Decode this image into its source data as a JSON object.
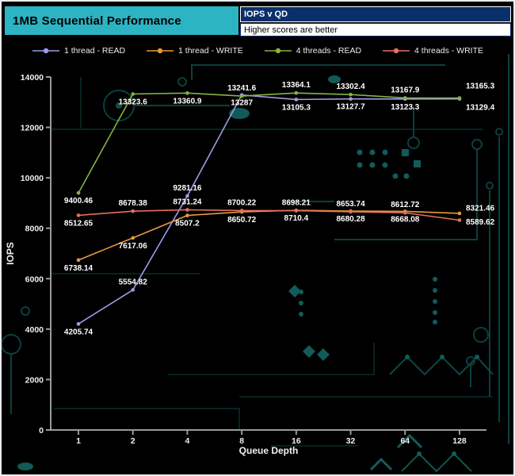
{
  "header": {
    "title": "1MB Sequential Performance",
    "title_bg_color": "#2db4c3",
    "subtitle_top": "IOPS v QD",
    "subtitle_top_bg_color": "#0b2f6b",
    "subtitle_bottom": "Higher scores are better",
    "subtitle_bottom_bg_color": "#ffffff"
  },
  "chart_data": {
    "type": "line",
    "title": "1MB Sequential Performance",
    "x_categories": [
      1,
      2,
      4,
      8,
      16,
      32,
      64,
      128
    ],
    "xlabel": "Queue Depth",
    "ylabel": "IOPS",
    "ylim": [
      0,
      14000
    ],
    "ytick_step": 2000,
    "grid": false,
    "legend_position": "top",
    "series": [
      {
        "name": "1 thread - READ",
        "color": "#9d9ce8",
        "values": [
          4205.74,
          5554.82,
          9281.16,
          13287,
          13105.3,
          13127.7,
          13123.3,
          13129.4
        ],
        "label_side": [
          "below",
          "above",
          "above",
          "below",
          "below",
          "below",
          "below",
          "below"
        ]
      },
      {
        "name": "1 thread - WRITE",
        "color": "#e59a3d",
        "values": [
          6738.14,
          7617.06,
          8507.2,
          8650.72,
          8710.4,
          8680.28,
          8668.08,
          8589.62
        ],
        "label_side": [
          "below",
          "below",
          "below",
          "below",
          "below",
          "below",
          "below",
          "below"
        ]
      },
      {
        "name": "4 threads - READ",
        "color": "#86b440",
        "values": [
          9400.46,
          13323.6,
          13360.9,
          13241.6,
          13364.1,
          13302.4,
          13167.9,
          13165.3
        ],
        "label_side": [
          "below",
          "below",
          "below",
          "above",
          "above",
          "above",
          "above",
          "above"
        ]
      },
      {
        "name": "4 threads - WRITE",
        "color": "#e4705f",
        "values": [
          8512.65,
          8678.38,
          8731.24,
          8700.22,
          8698.21,
          8653.74,
          8612.72,
          8321.46
        ],
        "label_side": [
          "below",
          "above",
          "above",
          "above",
          "above",
          "above",
          "above",
          "above"
        ]
      }
    ]
  }
}
